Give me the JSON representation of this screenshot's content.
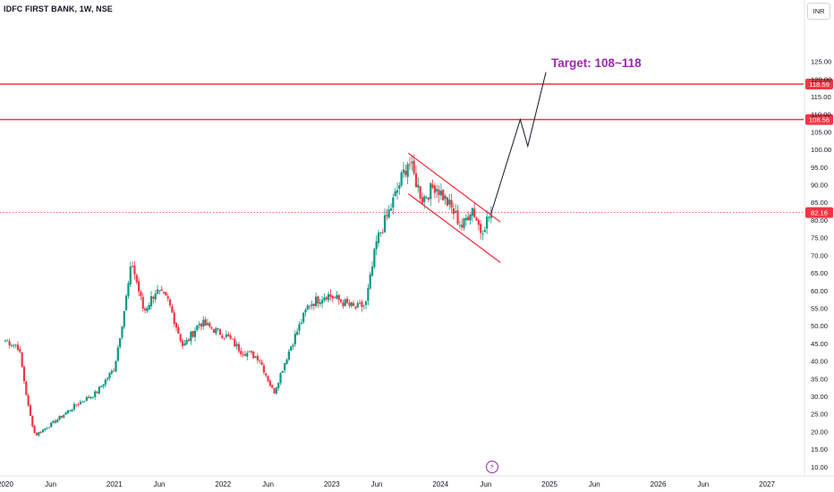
{
  "header": {
    "title": "IDFC FIRST BANK, 1W, NSE",
    "currency": "INR"
  },
  "annotation": {
    "target_label": "Target: 108~118"
  },
  "colors": {
    "up": "#089981",
    "down": "#f23645",
    "level": "#f23645",
    "projection": "#131722",
    "target_text": "#9c27b0",
    "price_line": "#f23645"
  },
  "icons": {
    "event": "lightning-icon"
  },
  "chart_data": {
    "type": "candlestick",
    "title": "IDFC FIRST BANK, 1W, NSE",
    "currency": "INR",
    "x_ticks": [
      "2020",
      "Jun",
      "2021",
      "Jun",
      "2022",
      "Jun",
      "2023",
      "Jun",
      "2024",
      "Jun",
      "2025",
      "Jun",
      "2026",
      "Jun",
      "2027"
    ],
    "x_tick_dates": [
      "2020-01-01",
      "2020-06-01",
      "2021-01-01",
      "2021-06-01",
      "2022-01-01",
      "2022-06-01",
      "2023-01-01",
      "2023-06-01",
      "2024-01-01",
      "2024-06-01",
      "2025-01-01",
      "2025-06-01",
      "2026-01-01",
      "2026-06-01",
      "2027-01-01"
    ],
    "y_ticks": [
      "10.00",
      "15.00",
      "20.00",
      "25.00",
      "30.00",
      "35.00",
      "40.00",
      "45.00",
      "50.00",
      "55.00",
      "60.00",
      "65.00",
      "70.00",
      "75.00",
      "80.00",
      "85.00",
      "90.00",
      "95.00",
      "100.00",
      "105.00",
      "110.00",
      "115.00",
      "120.00",
      "125.00"
    ],
    "ylim": [
      8,
      126
    ],
    "last_price": "82.16",
    "horizontal_levels": [
      {
        "label": "118.59",
        "value": 118.59
      },
      {
        "label": "108.56",
        "value": 108.56
      }
    ],
    "channel_upper": [
      {
        "date": "2023-09-15",
        "y": 99
      },
      {
        "date": "2024-07-20",
        "y": 79.5
      }
    ],
    "channel_lower": [
      {
        "date": "2023-09-15",
        "y": 87.5
      },
      {
        "date": "2024-07-20",
        "y": 68
      }
    ],
    "projection": [
      {
        "date": "2024-06-20",
        "y": 82.16
      },
      {
        "date": "2024-09-25",
        "y": 108.56
      },
      {
        "date": "2024-10-20",
        "y": 101
      },
      {
        "date": "2024-12-20",
        "y": 122
      }
    ],
    "anchors": [
      {
        "date": "2020-01-01",
        "y": 46
      },
      {
        "date": "2020-02-15",
        "y": 44
      },
      {
        "date": "2020-03-20",
        "y": 26
      },
      {
        "date": "2020-04-10",
        "y": 19
      },
      {
        "date": "2020-06-01",
        "y": 22
      },
      {
        "date": "2020-09-01",
        "y": 28
      },
      {
        "date": "2020-11-01",
        "y": 31
      },
      {
        "date": "2021-01-01",
        "y": 38
      },
      {
        "date": "2021-02-10",
        "y": 58
      },
      {
        "date": "2021-03-01",
        "y": 68
      },
      {
        "date": "2021-04-10",
        "y": 54
      },
      {
        "date": "2021-05-20",
        "y": 60
      },
      {
        "date": "2021-07-01",
        "y": 57
      },
      {
        "date": "2021-08-20",
        "y": 44
      },
      {
        "date": "2021-10-15",
        "y": 51
      },
      {
        "date": "2021-12-01",
        "y": 49
      },
      {
        "date": "2022-01-15",
        "y": 47
      },
      {
        "date": "2022-03-01",
        "y": 43
      },
      {
        "date": "2022-05-01",
        "y": 41
      },
      {
        "date": "2022-06-20",
        "y": 31
      },
      {
        "date": "2022-08-15",
        "y": 44
      },
      {
        "date": "2022-10-15",
        "y": 56
      },
      {
        "date": "2022-12-15",
        "y": 59
      },
      {
        "date": "2023-02-01",
        "y": 57
      },
      {
        "date": "2023-03-20",
        "y": 55
      },
      {
        "date": "2023-04-25",
        "y": 56
      },
      {
        "date": "2023-06-01",
        "y": 74
      },
      {
        "date": "2023-07-20",
        "y": 84
      },
      {
        "date": "2023-09-15",
        "y": 97
      },
      {
        "date": "2023-11-01",
        "y": 86
      },
      {
        "date": "2023-12-15",
        "y": 90
      },
      {
        "date": "2024-02-01",
        "y": 84
      },
      {
        "date": "2024-03-15",
        "y": 78
      },
      {
        "date": "2024-04-15",
        "y": 84
      },
      {
        "date": "2024-05-15",
        "y": 77
      },
      {
        "date": "2024-06-20",
        "y": 82.16
      }
    ]
  }
}
